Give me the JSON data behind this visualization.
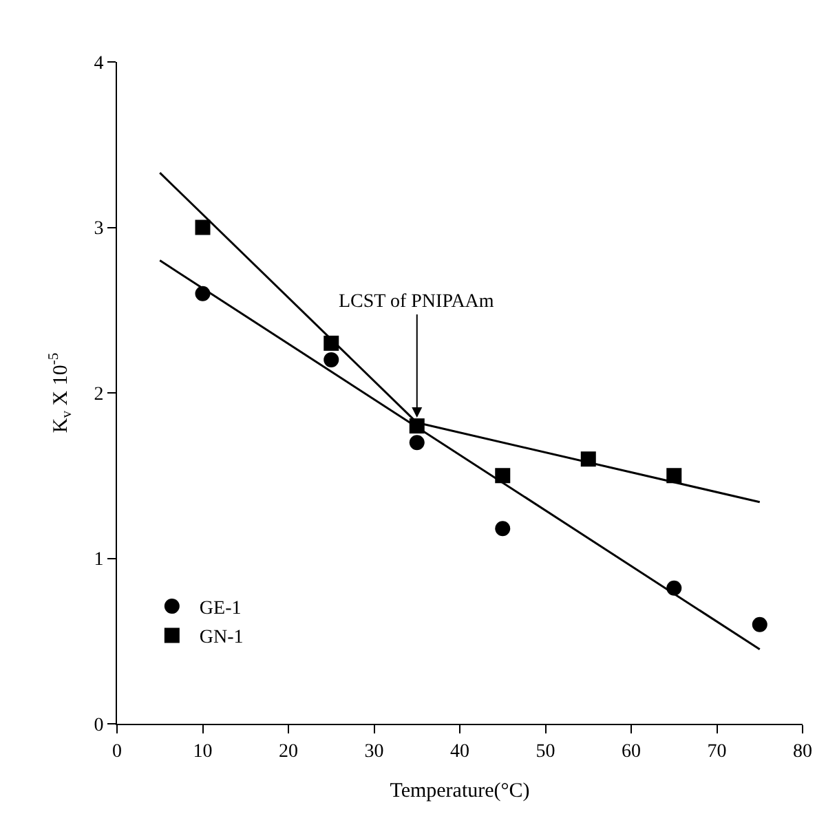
{
  "chart_data": {
    "type": "scatter",
    "xlabel": "Temperature(°C)",
    "ylabel": "K$_{v}$ X 10$^{-5}$",
    "xlim": [
      0,
      80
    ],
    "xticks": [
      0,
      10,
      20,
      30,
      40,
      50,
      60,
      70,
      80
    ],
    "ylim": [
      0,
      4
    ],
    "yticks": [
      0,
      1,
      2,
      3,
      4
    ],
    "legend": "bottom left",
    "annotations": [
      {
        "text": "LCST of PNIPAAm",
        "x": 35,
        "y": 1.85
      }
    ],
    "series": [
      {
        "name": "GE-1",
        "color": "#000000",
        "marker": "circle",
        "x": [
          10,
          25,
          35,
          45,
          65,
          75
        ],
        "values": [
          2.6,
          2.2,
          1.7,
          1.18,
          0.82,
          0.6
        ]
      },
      {
        "name": "GN-1",
        "color": "#000000",
        "marker": "square",
        "x": [
          10,
          25,
          35,
          45,
          55,
          65
        ],
        "values": [
          3.0,
          2.3,
          1.8,
          1.5,
          1.6,
          1.5
        ]
      },
      {
        "type": "line",
        "color": "#000000",
        "x": [
          5,
          75
        ],
        "values": [
          2.8,
          0.45
        ]
      },
      {
        "type": "line",
        "color": "#000000",
        "x": [
          5,
          35
        ],
        "values": [
          3.33,
          1.82
        ]
      },
      {
        "type": "line",
        "color": "#000000",
        "x": [
          35,
          75
        ],
        "values": [
          1.82,
          1.34
        ]
      }
    ]
  }
}
